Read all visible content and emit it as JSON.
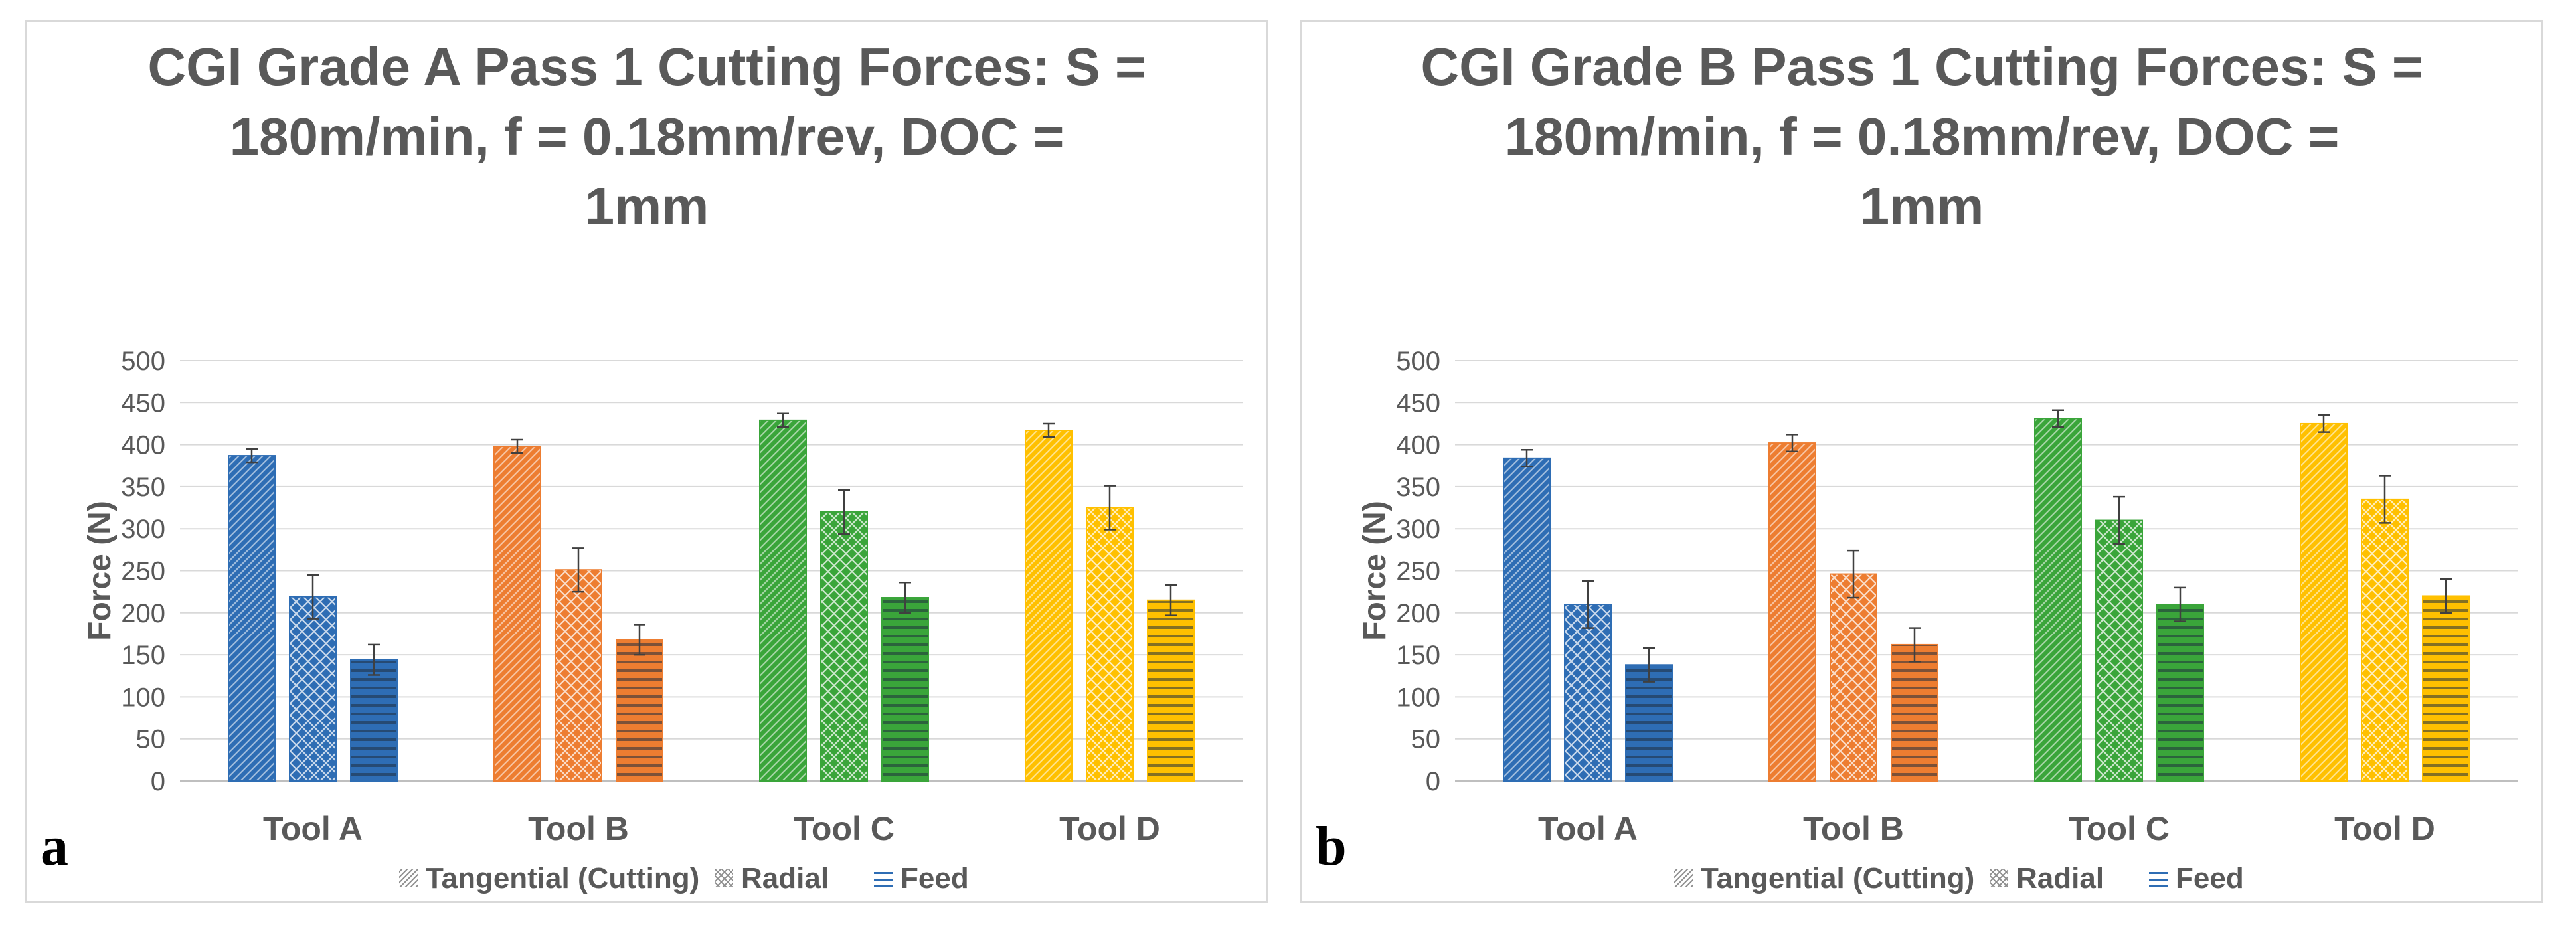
{
  "chart_data": [
    {
      "panel_label": "a",
      "type": "bar",
      "title_lines": [
        "CGI Grade A Pass 1 Cutting Forces: S =",
        "180m/min, f = 0.18mm/rev, DOC =",
        "1mm"
      ],
      "ylabel": "Force (N)",
      "xlabel": "",
      "ylim": [
        0,
        500
      ],
      "yticks": [
        0,
        50,
        100,
        150,
        200,
        250,
        300,
        350,
        400,
        450,
        500
      ],
      "categories": [
        "Tool A",
        "Tool B",
        "Tool C",
        "Tool D"
      ],
      "category_colors": [
        "#2e6db4",
        "#ed7d31",
        "#3aa53a",
        "#ffc000"
      ],
      "series": [
        {
          "name": "Tangential (Cutting)",
          "pattern": "diagonal",
          "values": [
            387,
            398,
            429,
            417
          ],
          "errors": [
            8,
            8,
            8,
            8
          ]
        },
        {
          "name": "Radial",
          "pattern": "crosshatch",
          "values": [
            219,
            251,
            320,
            325
          ],
          "errors": [
            26,
            26,
            26,
            26
          ]
        },
        {
          "name": "Feed",
          "pattern": "horizontal",
          "values": [
            144,
            168,
            218,
            215
          ],
          "errors": [
            18,
            18,
            18,
            18
          ]
        }
      ],
      "legend_position": "bottom",
      "grid": true
    },
    {
      "panel_label": "b",
      "type": "bar",
      "title_lines": [
        "CGI Grade B Pass 1 Cutting Forces: S =",
        "180m/min, f = 0.18mm/rev, DOC =",
        "1mm"
      ],
      "ylabel": "Force (N)",
      "xlabel": "",
      "ylim": [
        0,
        500
      ],
      "yticks": [
        0,
        50,
        100,
        150,
        200,
        250,
        300,
        350,
        400,
        450,
        500
      ],
      "categories": [
        "Tool A",
        "Tool B",
        "Tool C",
        "Tool D"
      ],
      "category_colors": [
        "#2e6db4",
        "#ed7d31",
        "#3aa53a",
        "#ffc000"
      ],
      "series": [
        {
          "name": "Tangential (Cutting)",
          "pattern": "diagonal",
          "values": [
            384,
            402,
            431,
            425
          ],
          "errors": [
            10,
            10,
            10,
            10
          ]
        },
        {
          "name": "Radial",
          "pattern": "crosshatch",
          "values": [
            210,
            246,
            310,
            335
          ],
          "errors": [
            28,
            28,
            28,
            28
          ]
        },
        {
          "name": "Feed",
          "pattern": "horizontal",
          "values": [
            138,
            162,
            210,
            220
          ],
          "errors": [
            20,
            20,
            20,
            20
          ]
        }
      ],
      "legend_position": "bottom",
      "grid": true
    }
  ]
}
